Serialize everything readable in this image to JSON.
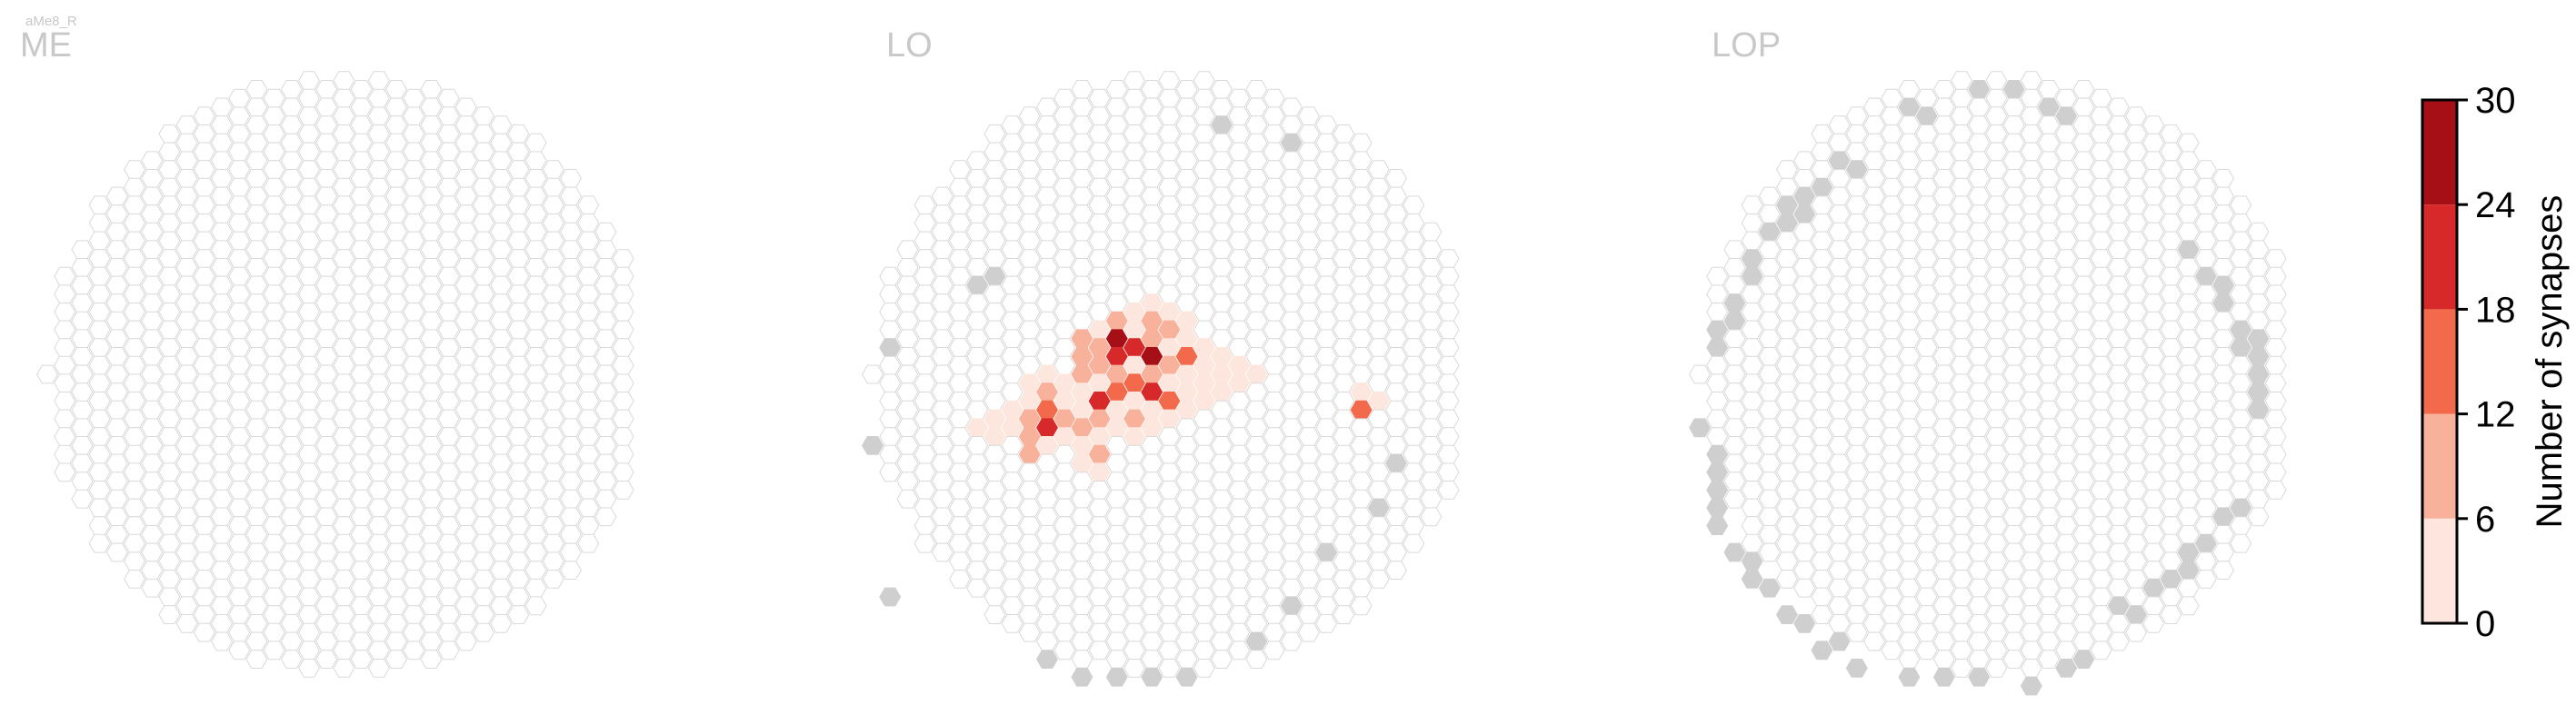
{
  "header": {
    "tiny_label": "aMe8_R"
  },
  "panels": [
    {
      "label": "ME"
    },
    {
      "label": "LO"
    },
    {
      "label": "LOP"
    }
  ],
  "colorbar": {
    "title": "Number of synapses",
    "ticks": [
      "0",
      "6",
      "12",
      "18",
      "24",
      "30"
    ],
    "bins": [
      {
        "from": 0,
        "to": 6,
        "color": "#fde6dd"
      },
      {
        "from": 6,
        "to": 12,
        "color": "#f8b29c"
      },
      {
        "from": 12,
        "to": 18,
        "color": "#f26a4b"
      },
      {
        "from": 18,
        "to": 24,
        "color": "#d8292a"
      },
      {
        "from": 24,
        "to": 30,
        "color": "#a50f15"
      }
    ]
  },
  "chart_data": {
    "type": "heatmap",
    "colorbar_range": [
      0,
      30
    ],
    "missing_color": "#cfcfcf",
    "panels": [
      {
        "label": "ME",
        "highlighted_cells": [],
        "gray_cells": []
      },
      {
        "label": "LO",
        "highlighted_cells": [
          {
            "col": 6,
            "row": 3,
            "value": 4
          },
          {
            "col": 7,
            "row": 2,
            "value": 3
          },
          {
            "col": 7,
            "row": 3,
            "value": 3
          },
          {
            "col": 8,
            "row": 2,
            "value": 4
          },
          {
            "col": 8,
            "row": 3,
            "value": 5
          },
          {
            "col": 9,
            "row": 0,
            "value": 2
          },
          {
            "col": 9,
            "row": 1,
            "value": 5
          },
          {
            "col": 9,
            "row": 2,
            "value": 7
          },
          {
            "col": 9,
            "row": 3,
            "value": 9
          },
          {
            "col": 9,
            "row": 4,
            "value": 7
          },
          {
            "col": 10,
            "row": 0,
            "value": 4
          },
          {
            "col": 10,
            "row": 1,
            "value": 8
          },
          {
            "col": 10,
            "row": 2,
            "value": 16
          },
          {
            "col": 10,
            "row": 3,
            "value": 20
          },
          {
            "col": 10,
            "row": 4,
            "value": 4
          },
          {
            "col": 11,
            "row": 0,
            "value": 2
          },
          {
            "col": 11,
            "row": 1,
            "value": 3
          },
          {
            "col": 11,
            "row": 2,
            "value": 8
          },
          {
            "col": 11,
            "row": 3,
            "value": 3
          },
          {
            "col": 12,
            "row": -2,
            "value": 10
          },
          {
            "col": 12,
            "row": -1,
            "value": 9
          },
          {
            "col": 12,
            "row": 0,
            "value": 9
          },
          {
            "col": 12,
            "row": 1,
            "value": 4
          },
          {
            "col": 12,
            "row": 2,
            "value": 4
          },
          {
            "col": 12,
            "row": 3,
            "value": 10
          },
          {
            "col": 12,
            "row": 4,
            "value": 2
          },
          {
            "col": 12,
            "row": 5,
            "value": 2
          },
          {
            "col": 13,
            "row": -3,
            "value": 2
          },
          {
            "col": 13,
            "row": -2,
            "value": 8
          },
          {
            "col": 13,
            "row": -1,
            "value": 10
          },
          {
            "col": 13,
            "row": 0,
            "value": 5
          },
          {
            "col": 13,
            "row": 1,
            "value": 18
          },
          {
            "col": 13,
            "row": 2,
            "value": 7
          },
          {
            "col": 13,
            "row": 3,
            "value": 3
          },
          {
            "col": 13,
            "row": 4,
            "value": 8
          },
          {
            "col": 13,
            "row": 5,
            "value": 2
          },
          {
            "col": 14,
            "row": -3,
            "value": 9
          },
          {
            "col": 14,
            "row": -2,
            "value": 27
          },
          {
            "col": 14,
            "row": -1,
            "value": 22
          },
          {
            "col": 14,
            "row": 0,
            "value": 8
          },
          {
            "col": 14,
            "row": 1,
            "value": 17
          },
          {
            "col": 14,
            "row": 2,
            "value": 4
          },
          {
            "col": 14,
            "row": 3,
            "value": 3
          },
          {
            "col": 15,
            "row": -4,
            "value": 2
          },
          {
            "col": 15,
            "row": -3,
            "value": 4
          },
          {
            "col": 15,
            "row": -2,
            "value": 20
          },
          {
            "col": 15,
            "row": -1,
            "value": 3
          },
          {
            "col": 15,
            "row": 0,
            "value": 14
          },
          {
            "col": 15,
            "row": 1,
            "value": 4
          },
          {
            "col": 15,
            "row": 2,
            "value": 8
          },
          {
            "col": 15,
            "row": 3,
            "value": 3
          },
          {
            "col": 16,
            "row": -4,
            "value": 3
          },
          {
            "col": 16,
            "row": -3,
            "value": 8
          },
          {
            "col": 16,
            "row": -2,
            "value": 9
          },
          {
            "col": 16,
            "row": -1,
            "value": 29
          },
          {
            "col": 16,
            "row": 0,
            "value": 11
          },
          {
            "col": 16,
            "row": 1,
            "value": 19
          },
          {
            "col": 16,
            "row": 2,
            "value": 4
          },
          {
            "col": 16,
            "row": 3,
            "value": 2
          },
          {
            "col": 17,
            "row": -4,
            "value": 4
          },
          {
            "col": 17,
            "row": -3,
            "value": 10
          },
          {
            "col": 17,
            "row": -2,
            "value": 3
          },
          {
            "col": 17,
            "row": -1,
            "value": 8
          },
          {
            "col": 17,
            "row": 0,
            "value": 3
          },
          {
            "col": 17,
            "row": 1,
            "value": 14
          },
          {
            "col": 17,
            "row": 2,
            "value": 3
          },
          {
            "col": 18,
            "row": -3,
            "value": 3
          },
          {
            "col": 18,
            "row": -2,
            "value": 4
          },
          {
            "col": 18,
            "row": -1,
            "value": 16
          },
          {
            "col": 18,
            "row": 0,
            "value": 3
          },
          {
            "col": 18,
            "row": 1,
            "value": 3
          },
          {
            "col": 18,
            "row": 2,
            "value": 2
          },
          {
            "col": 19,
            "row": -2,
            "value": 3
          },
          {
            "col": 19,
            "row": -1,
            "value": 2
          },
          {
            "col": 19,
            "row": 0,
            "value": 3
          },
          {
            "col": 19,
            "row": 1,
            "value": 2
          },
          {
            "col": 20,
            "row": -1,
            "value": 2
          },
          {
            "col": 20,
            "row": 0,
            "value": 3
          },
          {
            "col": 20,
            "row": 1,
            "value": 3
          },
          {
            "col": 21,
            "row": -1,
            "value": 2
          },
          {
            "col": 21,
            "row": 0,
            "value": 3
          },
          {
            "col": 22,
            "row": 0,
            "value": 2
          },
          {
            "col": 28,
            "row": 1,
            "value": 3
          },
          {
            "col": 28,
            "row": 2,
            "value": 14
          },
          {
            "col": 29,
            "row": 1,
            "value": 3
          }
        ],
        "gray_cells": [
          {
            "col": 0,
            "row": 4
          },
          {
            "col": 1,
            "row": -2
          },
          {
            "col": 1,
            "row": 12
          },
          {
            "col": 6,
            "row": -5
          },
          {
            "col": 7,
            "row": -6
          },
          {
            "col": 10,
            "row": 16
          },
          {
            "col": 12,
            "row": 17
          },
          {
            "col": 14,
            "row": 17
          },
          {
            "col": 16,
            "row": 17
          },
          {
            "col": 18,
            "row": 17
          },
          {
            "col": 20,
            "row": -14
          },
          {
            "col": 22,
            "row": 15
          },
          {
            "col": 24,
            "row": -13
          },
          {
            "col": 24,
            "row": 13
          },
          {
            "col": 26,
            "row": 10
          },
          {
            "col": 29,
            "row": 7
          },
          {
            "col": 30,
            "row": 5
          }
        ]
      },
      {
        "label": "LOP",
        "highlighted_cells": [],
        "gray_cells": [
          {
            "col": 0,
            "row": 3
          },
          {
            "col": 1,
            "row": -3
          },
          {
            "col": 1,
            "row": -2
          },
          {
            "col": 1,
            "row": 4
          },
          {
            "col": 1,
            "row": 5
          },
          {
            "col": 1,
            "row": 6
          },
          {
            "col": 1,
            "row": 7
          },
          {
            "col": 1,
            "row": 8
          },
          {
            "col": 2,
            "row": -4
          },
          {
            "col": 2,
            "row": -3
          },
          {
            "col": 2,
            "row": 10
          },
          {
            "col": 3,
            "row": -7
          },
          {
            "col": 3,
            "row": -6
          },
          {
            "col": 3,
            "row": 10
          },
          {
            "col": 3,
            "row": 11
          },
          {
            "col": 4,
            "row": -8
          },
          {
            "col": 4,
            "row": 12
          },
          {
            "col": 5,
            "row": -10
          },
          {
            "col": 5,
            "row": -9
          },
          {
            "col": 5,
            "row": 13
          },
          {
            "col": 6,
            "row": -10
          },
          {
            "col": 6,
            "row": -9
          },
          {
            "col": 6,
            "row": 14
          },
          {
            "col": 7,
            "row": -11
          },
          {
            "col": 7,
            "row": 15
          },
          {
            "col": 8,
            "row": -12
          },
          {
            "col": 8,
            "row": 15
          },
          {
            "col": 9,
            "row": -12
          },
          {
            "col": 9,
            "row": 16
          },
          {
            "col": 12,
            "row": -15
          },
          {
            "col": 13,
            "row": -15
          },
          {
            "col": 12,
            "row": 17
          },
          {
            "col": 14,
            "row": 17
          },
          {
            "col": 16,
            "row": -16
          },
          {
            "col": 16,
            "row": 17
          },
          {
            "col": 18,
            "row": -16
          },
          {
            "col": 19,
            "row": 17
          },
          {
            "col": 20,
            "row": -15
          },
          {
            "col": 21,
            "row": 16
          },
          {
            "col": 21,
            "row": -15
          },
          {
            "col": 22,
            "row": 16
          },
          {
            "col": 24,
            "row": 13
          },
          {
            "col": 25,
            "row": 13
          },
          {
            "col": 26,
            "row": 12
          },
          {
            "col": 27,
            "row": 11
          },
          {
            "col": 28,
            "row": -7
          },
          {
            "col": 28,
            "row": 10
          },
          {
            "col": 28,
            "row": 11
          },
          {
            "col": 29,
            "row": -6
          },
          {
            "col": 29,
            "row": 9
          },
          {
            "col": 30,
            "row": -5
          },
          {
            "col": 30,
            "row": -4
          },
          {
            "col": 30,
            "row": 8
          },
          {
            "col": 31,
            "row": -3
          },
          {
            "col": 31,
            "row": -2
          },
          {
            "col": 31,
            "row": 7
          },
          {
            "col": 32,
            "row": -2
          },
          {
            "col": 32,
            "row": -1
          },
          {
            "col": 32,
            "row": 0
          },
          {
            "col": 32,
            "row": 1
          },
          {
            "col": 32,
            "row": 2
          }
        ]
      }
    ]
  }
}
